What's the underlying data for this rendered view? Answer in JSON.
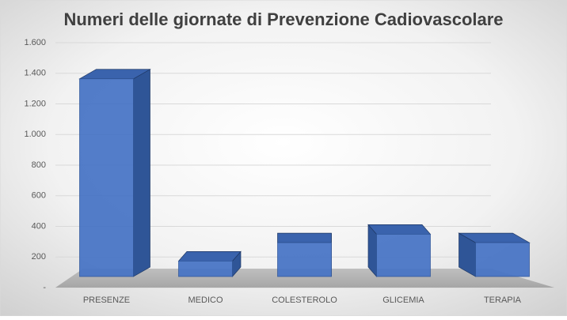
{
  "chart_data": {
    "type": "bar3d",
    "title": "Numeri delle giornate di Prevenzione Cadiovascolare",
    "categories": [
      "PRESENZE",
      "MEDICO",
      "COLESTEROLO",
      "GLICEMIA",
      "TERAPIA"
    ],
    "values": [
      1400,
      110,
      240,
      300,
      240
    ],
    "color": "#4472c4",
    "ylim": [
      0,
      1600
    ],
    "yticks": [
      {
        "value": 0,
        "label": "-"
      },
      200,
      400,
      600,
      800,
      {
        "value": 1000,
        "label": "1.000"
      },
      {
        "value": 1200,
        "label": "1.200"
      },
      {
        "value": 1400,
        "label": "1.400"
      },
      {
        "value": 1600,
        "label": "1.600"
      }
    ],
    "grid": true
  }
}
